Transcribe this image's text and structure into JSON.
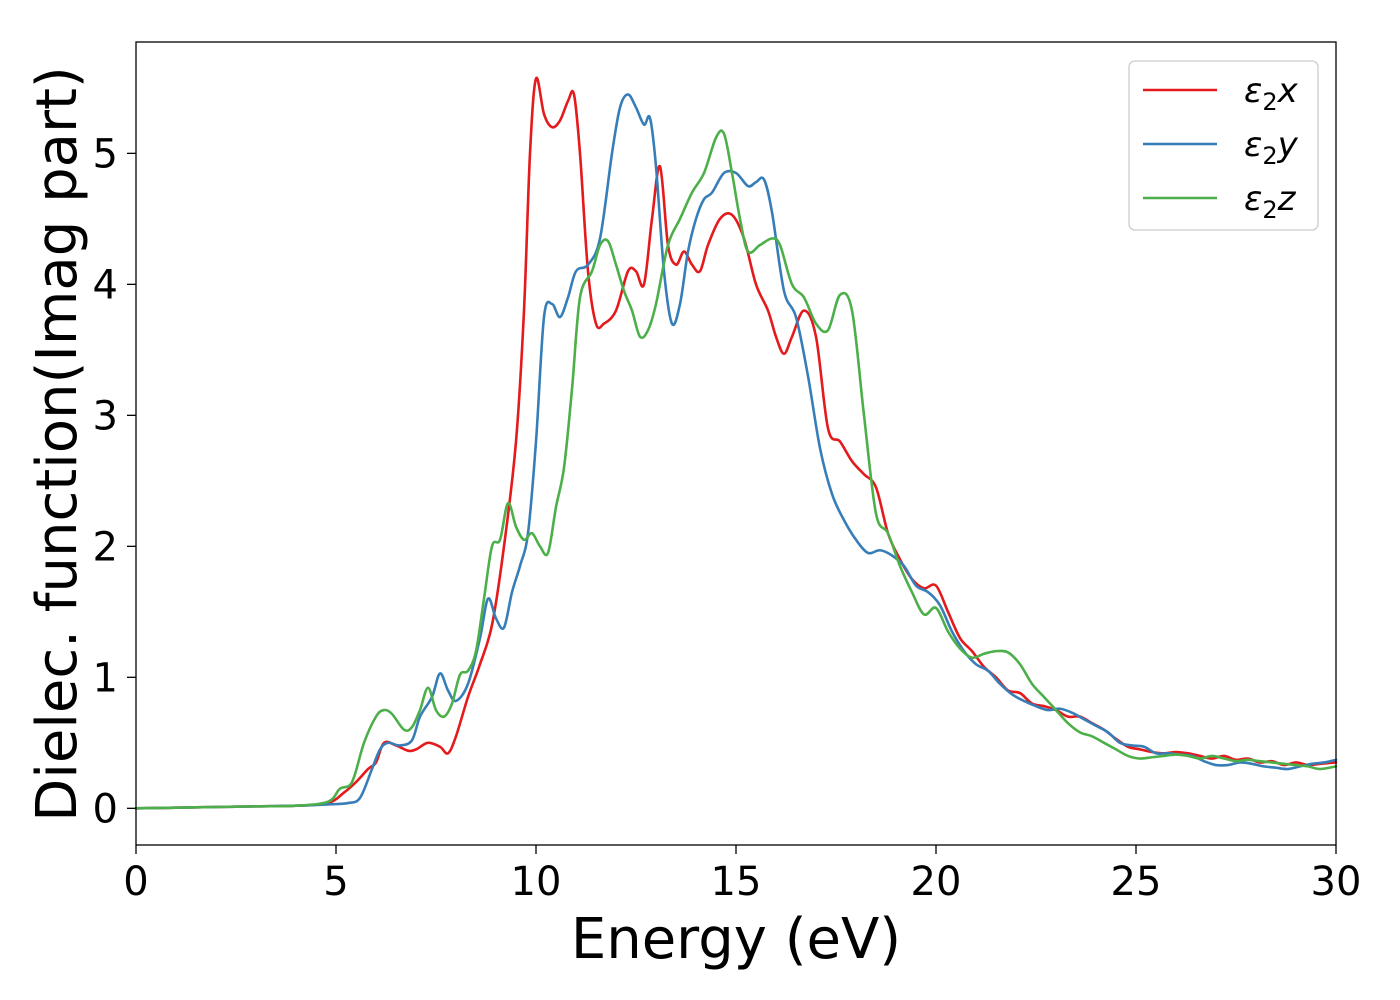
{
  "chart_data": {
    "type": "line",
    "title": "",
    "xlabel": "Energy (eV)",
    "ylabel": "Dielec. function(Imag part)",
    "xlim": [
      0,
      30
    ],
    "ylim": [
      -0.28,
      5.85
    ],
    "xticks": [
      0,
      5,
      10,
      15,
      20,
      25,
      30
    ],
    "yticks": [
      0,
      1,
      2,
      3,
      4,
      5
    ],
    "legend_position": "top-right",
    "grid": false,
    "series": [
      {
        "name": "ε2x",
        "legend_base": "ε",
        "legend_sub": "2",
        "legend_tail": "x",
        "color": "#e41a1c",
        "x": [
          0,
          1,
          2,
          3,
          4,
          4.8,
          5.2,
          5.5,
          5.8,
          6.0,
          6.2,
          6.5,
          6.8,
          7.0,
          7.3,
          7.6,
          7.8,
          8.0,
          8.3,
          8.6,
          8.9,
          9.2,
          9.5,
          9.7,
          9.85,
          10.0,
          10.2,
          10.4,
          10.6,
          10.8,
          10.95,
          11.1,
          11.3,
          11.5,
          11.7,
          12.0,
          12.3,
          12.5,
          12.7,
          12.9,
          13.1,
          13.3,
          13.5,
          13.7,
          13.9,
          14.1,
          14.3,
          14.6,
          14.9,
          15.2,
          15.5,
          15.8,
          16.0,
          16.2,
          16.4,
          16.7,
          17.0,
          17.3,
          17.6,
          17.9,
          18.2,
          18.5,
          18.8,
          19.1,
          19.4,
          19.7,
          20.0,
          20.3,
          20.6,
          20.9,
          21.2,
          21.5,
          21.8,
          22.1,
          22.4,
          22.7,
          23.0,
          23.3,
          23.6,
          23.9,
          24.2,
          24.5,
          24.8,
          25.1,
          25.4,
          25.7,
          26.0,
          26.3,
          26.6,
          26.9,
          27.2,
          27.5,
          27.8,
          28.1,
          28.4,
          28.7,
          29.0,
          29.3,
          29.6,
          30.0
        ],
        "y": [
          0,
          0.005,
          0.01,
          0.015,
          0.02,
          0.04,
          0.12,
          0.2,
          0.3,
          0.35,
          0.5,
          0.48,
          0.44,
          0.45,
          0.5,
          0.47,
          0.42,
          0.55,
          0.85,
          1.1,
          1.4,
          2.0,
          2.8,
          3.8,
          5.0,
          5.57,
          5.3,
          5.2,
          5.25,
          5.4,
          5.45,
          5.0,
          4.1,
          3.7,
          3.7,
          3.8,
          4.1,
          4.1,
          4.0,
          4.5,
          4.9,
          4.3,
          4.15,
          4.25,
          4.15,
          4.1,
          4.3,
          4.5,
          4.53,
          4.35,
          4.0,
          3.8,
          3.6,
          3.47,
          3.6,
          3.8,
          3.6,
          2.9,
          2.8,
          2.65,
          2.55,
          2.45,
          2.1,
          1.9,
          1.75,
          1.68,
          1.7,
          1.5,
          1.3,
          1.2,
          1.08,
          1.0,
          0.9,
          0.88,
          0.8,
          0.78,
          0.75,
          0.7,
          0.7,
          0.65,
          0.6,
          0.53,
          0.47,
          0.45,
          0.43,
          0.42,
          0.43,
          0.42,
          0.4,
          0.38,
          0.4,
          0.37,
          0.38,
          0.35,
          0.36,
          0.33,
          0.35,
          0.33,
          0.34,
          0.35
        ]
      },
      {
        "name": "ε2y",
        "legend_base": "ε",
        "legend_sub": "2",
        "legend_tail": "y",
        "color": "#377eb8",
        "x": [
          0,
          1,
          2,
          3,
          4,
          4.8,
          5.3,
          5.6,
          5.9,
          6.1,
          6.3,
          6.6,
          6.9,
          7.1,
          7.4,
          7.6,
          7.8,
          8.0,
          8.3,
          8.6,
          8.8,
          9.0,
          9.2,
          9.4,
          9.6,
          9.8,
          10.0,
          10.2,
          10.4,
          10.6,
          10.8,
          11.0,
          11.3,
          11.6,
          11.9,
          12.1,
          12.3,
          12.5,
          12.7,
          12.85,
          13.0,
          13.2,
          13.4,
          13.6,
          13.8,
          14.0,
          14.2,
          14.4,
          14.7,
          15.0,
          15.3,
          15.5,
          15.7,
          15.9,
          16.2,
          16.5,
          16.8,
          17.1,
          17.4,
          17.7,
          18.0,
          18.3,
          18.6,
          18.9,
          19.2,
          19.5,
          19.8,
          20.1,
          20.4,
          20.7,
          21.0,
          21.3,
          21.6,
          21.9,
          22.2,
          22.5,
          22.8,
          23.1,
          23.4,
          23.7,
          24.0,
          24.3,
          24.6,
          24.9,
          25.2,
          25.5,
          25.8,
          26.1,
          26.4,
          26.7,
          27.0,
          27.3,
          27.6,
          27.9,
          28.2,
          28.5,
          28.8,
          29.1,
          29.4,
          29.7,
          30.0
        ],
        "y": [
          0,
          0.005,
          0.01,
          0.015,
          0.02,
          0.03,
          0.04,
          0.08,
          0.3,
          0.45,
          0.5,
          0.48,
          0.52,
          0.7,
          0.85,
          1.03,
          0.9,
          0.82,
          0.95,
          1.3,
          1.6,
          1.45,
          1.38,
          1.65,
          1.85,
          2.1,
          2.8,
          3.75,
          3.85,
          3.75,
          3.9,
          4.1,
          4.15,
          4.35,
          5.0,
          5.35,
          5.45,
          5.35,
          5.22,
          5.27,
          4.9,
          4.1,
          3.7,
          3.85,
          4.25,
          4.5,
          4.65,
          4.7,
          4.85,
          4.85,
          4.75,
          4.78,
          4.8,
          4.55,
          3.95,
          3.75,
          3.3,
          2.75,
          2.4,
          2.2,
          2.05,
          1.95,
          1.97,
          1.93,
          1.85,
          1.7,
          1.65,
          1.55,
          1.35,
          1.2,
          1.1,
          1.05,
          0.95,
          0.87,
          0.82,
          0.78,
          0.75,
          0.76,
          0.73,
          0.68,
          0.63,
          0.58,
          0.5,
          0.48,
          0.47,
          0.42,
          0.42,
          0.41,
          0.4,
          0.36,
          0.33,
          0.33,
          0.35,
          0.34,
          0.32,
          0.31,
          0.3,
          0.32,
          0.34,
          0.35,
          0.37
        ]
      },
      {
        "name": "ε2z",
        "legend_base": "ε",
        "legend_sub": "2",
        "legend_tail": "z",
        "color": "#4daf4a",
        "x": [
          0,
          1,
          2,
          3,
          4,
          4.8,
          5.1,
          5.4,
          5.7,
          6.0,
          6.2,
          6.4,
          6.7,
          6.9,
          7.1,
          7.3,
          7.5,
          7.7,
          7.9,
          8.1,
          8.3,
          8.5,
          8.7,
          8.9,
          9.1,
          9.3,
          9.5,
          9.7,
          9.9,
          10.1,
          10.3,
          10.5,
          10.7,
          10.9,
          11.1,
          11.4,
          11.6,
          11.8,
          12.0,
          12.2,
          12.4,
          12.6,
          12.8,
          13.0,
          13.3,
          13.6,
          13.9,
          14.2,
          14.5,
          14.7,
          14.9,
          15.1,
          15.3,
          15.6,
          15.9,
          16.1,
          16.4,
          16.7,
          17.0,
          17.3,
          17.6,
          17.9,
          18.2,
          18.5,
          18.8,
          19.1,
          19.4,
          19.7,
          20.0,
          20.3,
          20.6,
          20.9,
          21.2,
          21.5,
          21.8,
          22.1,
          22.4,
          22.7,
          23.0,
          23.3,
          23.6,
          23.9,
          24.2,
          24.5,
          24.8,
          25.1,
          25.4,
          25.7,
          26.0,
          26.3,
          26.6,
          26.9,
          27.2,
          27.5,
          27.8,
          28.1,
          28.4,
          28.7,
          29.0,
          29.3,
          29.6,
          30.0
        ],
        "y": [
          0,
          0.005,
          0.01,
          0.015,
          0.02,
          0.05,
          0.15,
          0.2,
          0.5,
          0.7,
          0.75,
          0.72,
          0.6,
          0.62,
          0.75,
          0.92,
          0.75,
          0.7,
          0.8,
          1.02,
          1.05,
          1.2,
          1.6,
          2.0,
          2.05,
          2.33,
          2.15,
          2.05,
          2.1,
          2.0,
          1.95,
          2.3,
          2.6,
          3.2,
          3.9,
          4.1,
          4.3,
          4.33,
          4.15,
          3.95,
          3.8,
          3.6,
          3.65,
          3.85,
          4.3,
          4.5,
          4.7,
          4.85,
          5.12,
          5.15,
          4.85,
          4.5,
          4.25,
          4.3,
          4.35,
          4.3,
          4.0,
          3.9,
          3.7,
          3.65,
          3.92,
          3.8,
          3.0,
          2.25,
          2.1,
          1.85,
          1.65,
          1.48,
          1.53,
          1.35,
          1.22,
          1.15,
          1.18,
          1.2,
          1.19,
          1.1,
          0.95,
          0.85,
          0.75,
          0.65,
          0.58,
          0.55,
          0.5,
          0.45,
          0.4,
          0.38,
          0.39,
          0.4,
          0.41,
          0.4,
          0.38,
          0.4,
          0.38,
          0.36,
          0.37,
          0.36,
          0.35,
          0.34,
          0.33,
          0.32,
          0.3,
          0.32
        ]
      }
    ]
  }
}
